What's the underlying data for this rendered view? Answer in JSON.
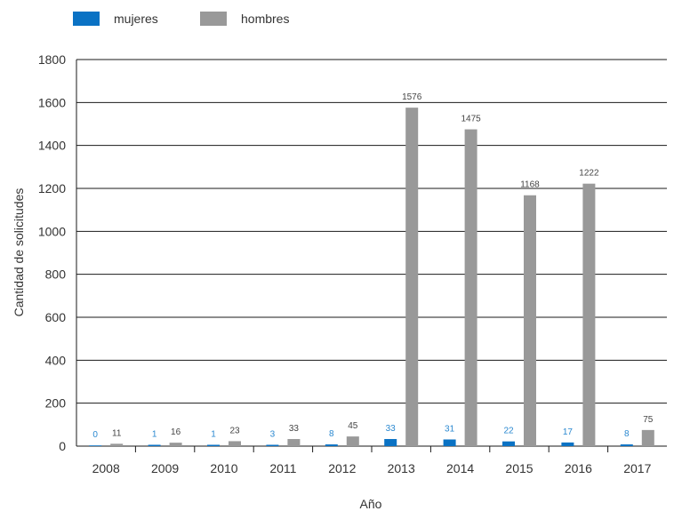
{
  "chart_data": {
    "type": "bar",
    "title": "",
    "xlabel": "Año",
    "ylabel": "Cantidad de solicitudes",
    "ylim": [
      0,
      1800
    ],
    "yticks": [
      0,
      200,
      400,
      600,
      800,
      1000,
      1200,
      1400,
      1600,
      1800
    ],
    "categories": [
      "2008",
      "2009",
      "2010",
      "2011",
      "2012",
      "2013",
      "2014",
      "2015",
      "2016",
      "2017"
    ],
    "series": [
      {
        "name": "mujeres",
        "color": "#0a72c4",
        "label_color": "#2a88d0",
        "values": [
          0,
          1,
          1,
          3,
          8,
          33,
          31,
          22,
          17,
          8
        ]
      },
      {
        "name": "hombres",
        "color": "#999999",
        "label_color": "#444444",
        "values": [
          11,
          16,
          23,
          33,
          45,
          1576,
          1475,
          1168,
          1222,
          75
        ]
      }
    ],
    "grid": true,
    "legend_position": "top-left"
  }
}
